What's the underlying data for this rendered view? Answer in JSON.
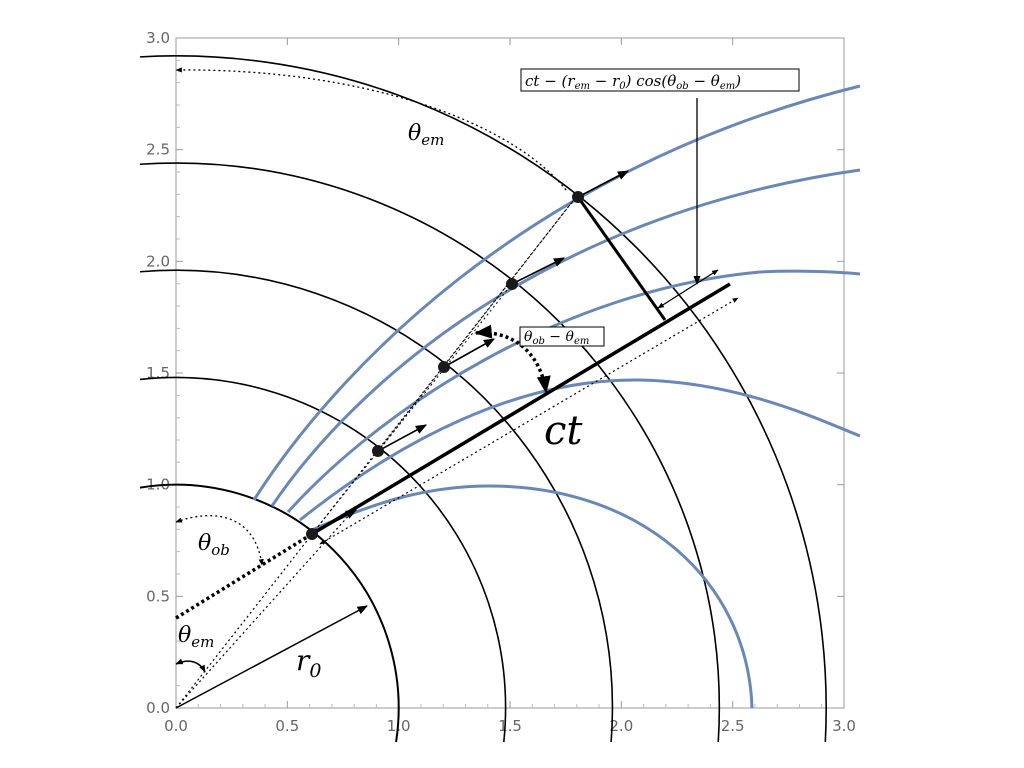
{
  "axes": {
    "x_range": [
      0,
      3
    ],
    "y_range": [
      0,
      3
    ],
    "x_ticks": [
      "0.0",
      "0.5",
      "1.0",
      "1.5",
      "2.0",
      "2.5",
      "3.0"
    ],
    "y_ticks": [
      "0.0",
      "0.5",
      "1.0",
      "1.5",
      "2.0",
      "2.5",
      "3.0"
    ],
    "frame": true
  },
  "colors": {
    "curve": "#6a88b6",
    "ink": "#000000",
    "tick_text": "#666666",
    "frame": "#999999"
  },
  "wavefront_radii": [
    1.0,
    1.48,
    1.96,
    2.44,
    2.92
  ],
  "emission_points": [
    {
      "t": 0
    },
    {
      "t": 1
    },
    {
      "t": 2
    },
    {
      "t": 3
    },
    {
      "t": 4
    }
  ],
  "labels": {
    "theta_em_outer": {
      "base": "θ",
      "sub": "em"
    },
    "theta_ob": {
      "base": "θ",
      "sub": "ob"
    },
    "theta_em_inner": {
      "base": "θ",
      "sub": "em"
    },
    "r0": {
      "base": "r",
      "sub": "0"
    },
    "ct": "ct",
    "angle_diff": {
      "a": "θ",
      "a_sub": "ob",
      "op": " − ",
      "b": "θ",
      "b_sub": "em"
    },
    "formula": {
      "p1": "ct − (r",
      "p1_sub": "em",
      "p2": " − r",
      "p2_sub": "0",
      "p3": ") cos(θ",
      "p3_sub": "ob",
      "p4": " − θ",
      "p4_sub": "em",
      "p5": ")"
    }
  }
}
